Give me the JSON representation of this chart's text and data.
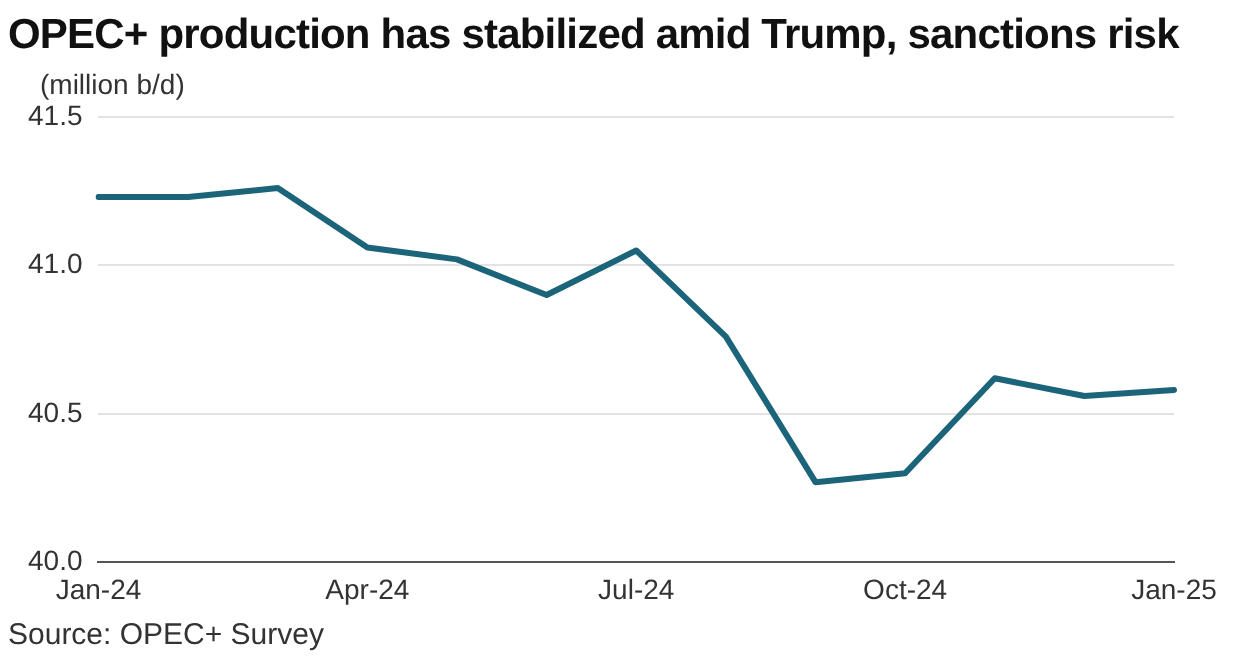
{
  "chart_data": {
    "type": "line",
    "title": "OPEC+ production has stabilized amid Trump, sanctions risk",
    "ylabel": "(million b/d)",
    "categories": [
      "Jan-24",
      null,
      null,
      "Apr-24",
      null,
      null,
      "Jul-24",
      null,
      null,
      "Oct-24",
      null,
      null,
      "Jan-25"
    ],
    "series": [
      {
        "color": "#1b6479",
        "values": [
          41.23,
          41.23,
          41.26,
          41.06,
          41.02,
          40.9,
          41.05,
          40.76,
          40.27,
          40.3,
          40.62,
          40.56,
          40.58
        ]
      }
    ],
    "ylim": [
      40,
      41.5
    ],
    "yticks": [
      {
        "value": 40,
        "label": "40.0"
      },
      {
        "value": 40.5,
        "label": "40.5"
      },
      {
        "value": 41,
        "label": "41.0"
      },
      {
        "value": 41.5,
        "label": "41.5"
      }
    ],
    "grid": "y",
    "legend": false,
    "marker": "none",
    "line_style": "solid",
    "annotations": [
      "Source: OPEC+ Survey"
    ]
  }
}
